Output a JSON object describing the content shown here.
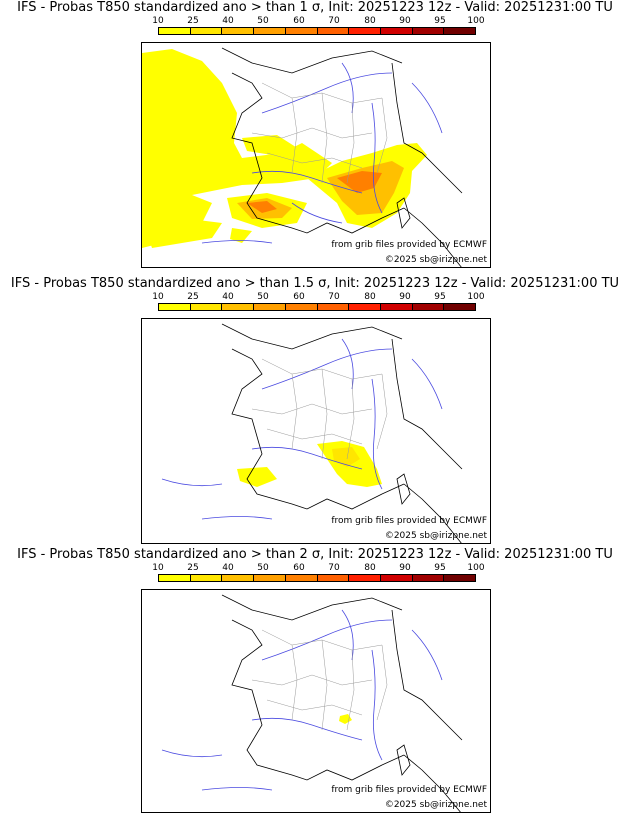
{
  "scale_colors": [
    "#ffff00",
    "#ffe600",
    "#ffc000",
    "#ffa000",
    "#ff8000",
    "#ff6000",
    "#ff2000",
    "#d00000",
    "#a00000",
    "#700000"
  ],
  "scale_labels": [
    "10",
    "25",
    "40",
    "50",
    "60",
    "70",
    "80",
    "90",
    "95",
    "100"
  ],
  "panels": [
    {
      "title": "IFS - Probas T850  standardized ano > than 1 σ, Init: 20251223 12z - Valid: 20251231:00 TU",
      "source": "from grib files provided by ECMWF",
      "copyright": "©2025 sb@irizpne.net"
    },
    {
      "title": "IFS - Probas T850  standardized ano > than 1.5 σ, Init: 20251223 12z - Valid: 20251231:00 TU",
      "source": "from grib files provided by ECMWF",
      "copyright": "©2025 sb@irizpne.net"
    },
    {
      "title": "IFS - Probas T850  standardized ano > than 2 σ, Init: 20251223 12z - Valid: 20251231:00 TU",
      "source": "from grib files provided by ECMWF",
      "copyright": "©2025 sb@irizpne.net"
    }
  ]
}
